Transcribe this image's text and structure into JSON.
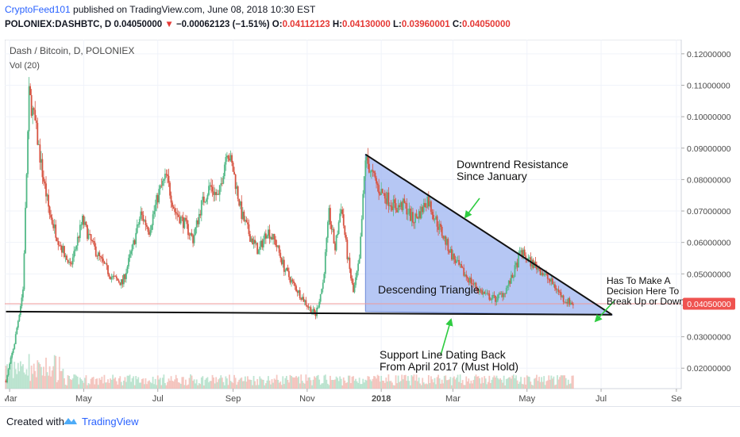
{
  "header": {
    "author": "CryptoFeed101",
    "published_text": " published on TradingView.com, June 08, 2018 10:30 EST",
    "symbol": "POLONIEX:DASHBTC, D",
    "last": "0.04050000",
    "change": "−0.00062123 (−1.51%)",
    "open_label": "O:",
    "open": "0.04112123",
    "high_label": "H:",
    "high": "0.04130000",
    "low_label": "L:",
    "low": "0.03960001",
    "close_label": "C:",
    "close": "0.04050000"
  },
  "footer": {
    "created_with": "Created with",
    "brand": "TradingView"
  },
  "colors": {
    "up": "#53b987",
    "down": "#d75442",
    "triangle_fill": "#9db4f0",
    "price_label_bg": "#ef5350",
    "arrow": "#2ecc40",
    "line": "#111111"
  },
  "icons": {
    "down_arrow": "triangle-down-icon",
    "logo": "tradingview-cloud-icon"
  },
  "chart_data": {
    "type": "candlestick",
    "title": "Dash / Bitcoin, D, POLONIEX",
    "volume_label": "Vol (20)",
    "x_ticks": [
      "Mar",
      "May",
      "Jul",
      "Sep",
      "Nov",
      "2018",
      "Mar",
      "May",
      "Jul",
      "Se"
    ],
    "y_ticks": [
      "0.12000000",
      "0.11000000",
      "0.10000000",
      "0.09000000",
      "0.08000000",
      "0.07000000",
      "0.06000000",
      "0.05000000",
      "0.04000000",
      "0.03000000",
      "0.02000000"
    ],
    "ylim": [
      0.0135,
      0.1245
    ],
    "xlim": [
      "2017-02-25",
      "2018-09-05"
    ],
    "current_price": 0.0405,
    "current_price_label": "0.04050000",
    "price_path": [
      [
        "2017-02-26",
        0.016
      ],
      [
        "2017-03-05",
        0.028
      ],
      [
        "2017-03-12",
        0.045
      ],
      [
        "2017-03-17",
        0.107
      ],
      [
        "2017-03-22",
        0.098
      ],
      [
        "2017-03-28",
        0.082
      ],
      [
        "2017-04-03",
        0.069
      ],
      [
        "2017-04-10",
        0.061
      ],
      [
        "2017-04-20",
        0.052
      ],
      [
        "2017-04-30",
        0.067
      ],
      [
        "2017-05-06",
        0.061
      ],
      [
        "2017-05-14",
        0.055
      ],
      [
        "2017-05-24",
        0.049
      ],
      [
        "2017-06-02",
        0.047
      ],
      [
        "2017-06-10",
        0.058
      ],
      [
        "2017-06-17",
        0.069
      ],
      [
        "2017-06-24",
        0.064
      ],
      [
        "2017-07-02",
        0.076
      ],
      [
        "2017-07-08",
        0.081
      ],
      [
        "2017-07-15",
        0.07
      ],
      [
        "2017-07-23",
        0.066
      ],
      [
        "2017-07-30",
        0.061
      ],
      [
        "2017-08-06",
        0.072
      ],
      [
        "2017-08-13",
        0.078
      ],
      [
        "2017-08-20",
        0.074
      ],
      [
        "2017-08-27",
        0.09
      ],
      [
        "2017-09-01",
        0.083
      ],
      [
        "2017-09-08",
        0.069
      ],
      [
        "2017-09-15",
        0.062
      ],
      [
        "2017-09-22",
        0.057
      ],
      [
        "2017-09-29",
        0.064
      ],
      [
        "2017-10-06",
        0.06
      ],
      [
        "2017-10-13",
        0.052
      ],
      [
        "2017-10-20",
        0.047
      ],
      [
        "2017-10-27",
        0.043
      ],
      [
        "2017-11-03",
        0.039
      ],
      [
        "2017-11-08",
        0.037
      ],
      [
        "2017-11-14",
        0.047
      ],
      [
        "2017-11-19",
        0.069
      ],
      [
        "2017-11-24",
        0.058
      ],
      [
        "2017-11-29",
        0.072
      ],
      [
        "2017-12-04",
        0.056
      ],
      [
        "2017-12-09",
        0.044
      ],
      [
        "2017-12-14",
        0.054
      ],
      [
        "2017-12-19",
        0.087
      ],
      [
        "2017-12-24",
        0.082
      ],
      [
        "2017-12-30",
        0.077
      ],
      [
        "2018-01-06",
        0.074
      ],
      [
        "2018-01-13",
        0.071
      ],
      [
        "2018-01-20",
        0.072
      ],
      [
        "2018-01-27",
        0.067
      ],
      [
        "2018-02-03",
        0.07
      ],
      [
        "2018-02-08",
        0.074
      ],
      [
        "2018-02-14",
        0.068
      ],
      [
        "2018-02-21",
        0.062
      ],
      [
        "2018-02-28",
        0.056
      ],
      [
        "2018-03-08",
        0.051
      ],
      [
        "2018-03-15",
        0.048
      ],
      [
        "2018-03-22",
        0.045
      ],
      [
        "2018-03-29",
        0.043
      ],
      [
        "2018-04-05",
        0.042
      ],
      [
        "2018-04-12",
        0.044
      ],
      [
        "2018-04-19",
        0.049
      ],
      [
        "2018-04-26",
        0.057
      ],
      [
        "2018-05-03",
        0.054
      ],
      [
        "2018-05-10",
        0.052
      ],
      [
        "2018-05-17",
        0.049
      ],
      [
        "2018-05-24",
        0.046
      ],
      [
        "2018-05-31",
        0.042
      ],
      [
        "2018-06-05",
        0.041
      ],
      [
        "2018-06-08",
        0.0405
      ]
    ],
    "annotations": [
      {
        "id": "resistance",
        "lines": [
          "Downtrend Resistance",
          "Since January"
        ]
      },
      {
        "id": "triangle",
        "lines": [
          "Descending Triangle"
        ]
      },
      {
        "id": "decision",
        "lines": [
          "Has To Make A",
          "Decision Here To",
          "Break Up or Down"
        ]
      },
      {
        "id": "support",
        "lines": [
          "Support Line Dating Back",
          "From April 2017 (Must Hold)"
        ]
      }
    ],
    "support_line": {
      "from": [
        "2017-02-26",
        0.038
      ],
      "to": [
        "2018-07-10",
        0.037
      ]
    },
    "resistance_line": {
      "from": [
        "2017-12-19",
        0.088
      ],
      "to": [
        "2018-07-10",
        0.037
      ]
    },
    "triangle": [
      [
        "2017-12-19",
        0.088
      ],
      [
        "2018-07-10",
        0.037
      ],
      [
        "2017-12-19",
        0.038
      ]
    ]
  }
}
